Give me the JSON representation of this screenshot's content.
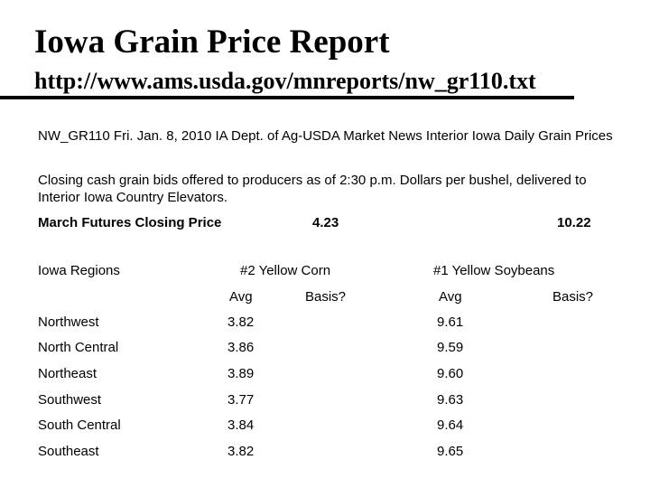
{
  "report": {
    "title": "Iowa Grain Price Report",
    "url": "http://www.ams.usda.gov/mnreports/nw_gr110.txt",
    "header_line": "NW_GR110 Fri. Jan. 8, 2010   IA Dept. of Ag-USDA Market News Interior Iowa Daily Grain Prices",
    "description": "Closing cash grain bids offered to producers as of 2:30 p.m. Dollars per bushel, delivered to Interior Iowa Country Elevators."
  },
  "futures": {
    "label": "March Futures Closing Price",
    "corn": "4.23",
    "soybeans": "10.22"
  },
  "table": {
    "region_header": "Iowa Regions",
    "corn_header": "#2 Yellow Corn",
    "soy_header": "#1 Yellow Soybeans",
    "avg_label": "Avg",
    "basis_label": "Basis?",
    "rows": [
      {
        "region": "Northwest",
        "corn_avg": "3.82",
        "soy_avg": "9.61"
      },
      {
        "region": "North Central",
        "corn_avg": "3.86",
        "soy_avg": "9.59"
      },
      {
        "region": "Northeast",
        "corn_avg": "3.89",
        "soy_avg": "9.60"
      },
      {
        "region": "Southwest",
        "corn_avg": "3.77",
        "soy_avg": "9.63"
      },
      {
        "region": "South Central",
        "corn_avg": "3.84",
        "soy_avg": "9.64"
      },
      {
        "region": "Southeast",
        "corn_avg": "3.82",
        "soy_avg": "9.65"
      }
    ]
  }
}
